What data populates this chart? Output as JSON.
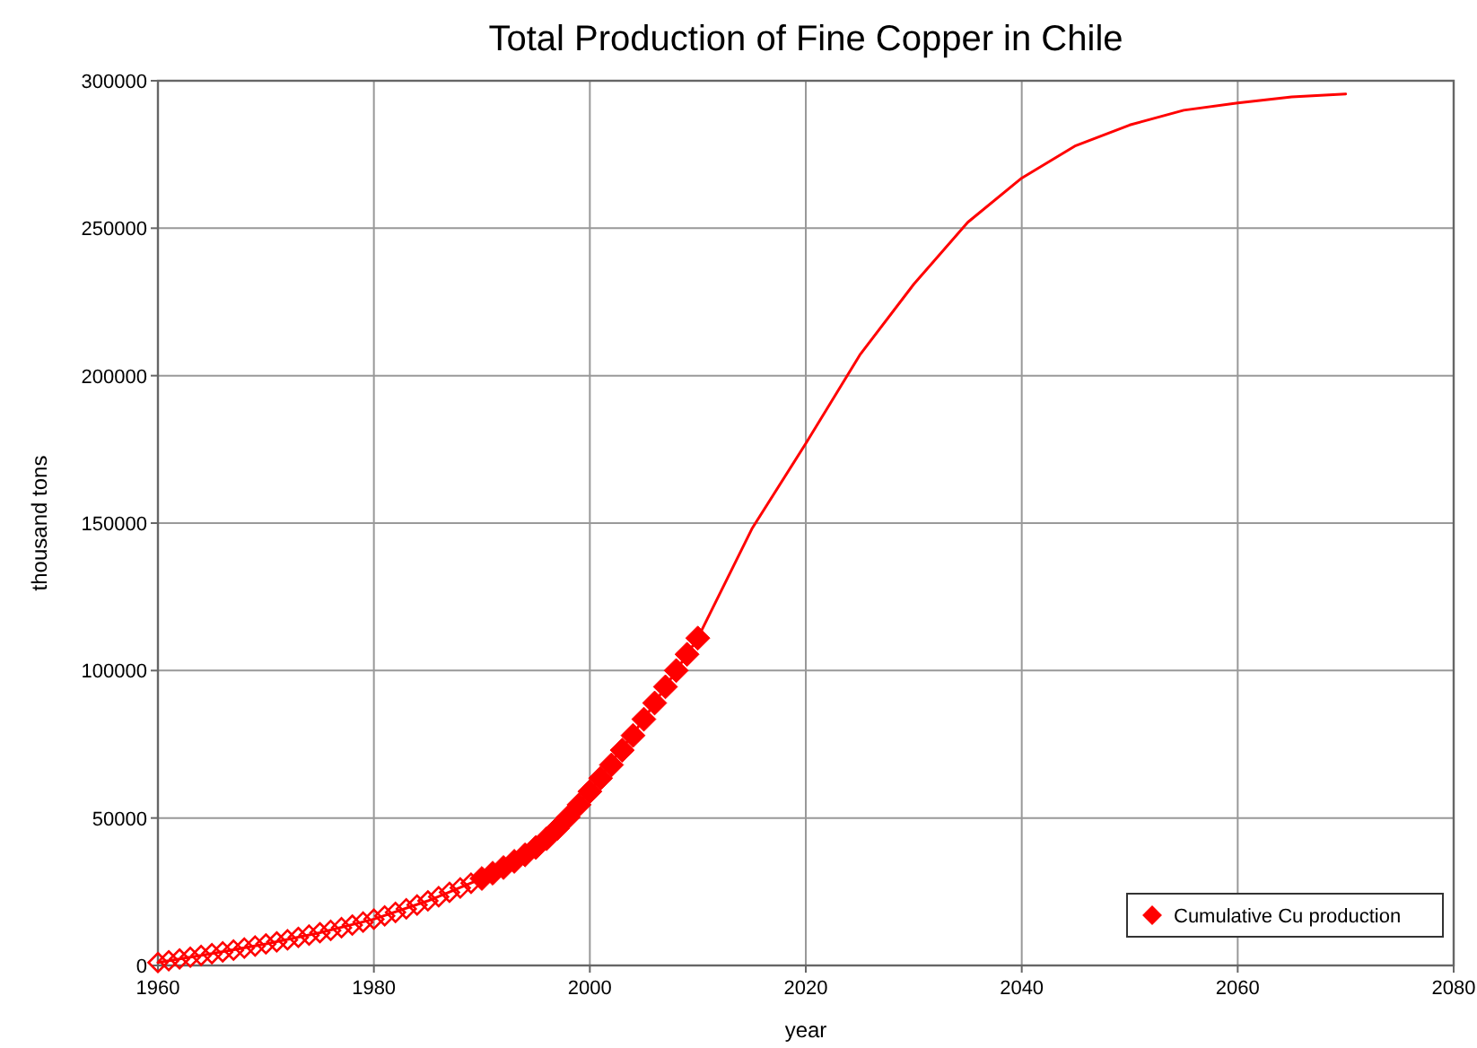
{
  "chart_data": {
    "type": "line",
    "title": "Total Production of Fine Copper in Chile",
    "xlabel": "year",
    "ylabel": "thousand tons",
    "xlim": [
      1960,
      2080
    ],
    "xticks": [
      1960,
      1980,
      2000,
      2020,
      2040,
      2060,
      2080
    ],
    "ylim": [
      0,
      300000
    ],
    "yticks": [
      0,
      50000,
      100000,
      150000,
      200000,
      250000,
      300000
    ],
    "grid": true,
    "legend": "bottom right",
    "series": [
      {
        "color": "#ff0000",
        "marker": "none",
        "line_style": "solid",
        "x": [
          1960,
          1965,
          1970,
          1975,
          1980,
          1985,
          1990,
          1995,
          2000,
          2005,
          2010,
          2015,
          2020,
          2025,
          2030,
          2035,
          2040,
          2045,
          2050,
          2055,
          2060,
          2065,
          2070
        ],
        "values": [
          1000,
          4000,
          7300,
          11100,
          15700,
          21900,
          29500,
          40000,
          59000,
          83500,
          111000,
          148000,
          177000,
          207000,
          231000,
          252000,
          267000,
          278000,
          285000,
          290000,
          292500,
          294500,
          295500
        ]
      },
      {
        "type": "scatter",
        "color": "#ff0000",
        "marker": "diamond",
        "x": [
          1960,
          1961,
          1962,
          1963,
          1964,
          1965,
          1966,
          1967,
          1968,
          1969,
          1970,
          1971,
          1972,
          1973,
          1974,
          1975,
          1976,
          1977,
          1978,
          1979,
          1980,
          1981,
          1982,
          1983,
          1984,
          1985,
          1986,
          1987,
          1988,
          1989
        ],
        "values": [
          1000,
          1600,
          2200,
          2800,
          3400,
          4000,
          4600,
          5200,
          5900,
          6600,
          7300,
          8000,
          8700,
          9500,
          10300,
          11100,
          11900,
          12800,
          13700,
          14700,
          15700,
          16800,
          18000,
          19200,
          20500,
          21900,
          23300,
          24800,
          26300,
          27900
        ]
      },
      {
        "type": "scatter",
        "name": "Cumulative Cu production",
        "color": "#ff0000",
        "marker": "diamond",
        "x": [
          1990,
          1991,
          1992,
          1993,
          1994,
          1995,
          1996,
          1997,
          1998,
          1999,
          2000,
          2001,
          2002,
          2003,
          2004,
          2005,
          2006,
          2007,
          2008,
          2009,
          2010
        ],
        "values": [
          29500,
          31300,
          33200,
          35300,
          37500,
          40000,
          43000,
          46500,
          50300,
          54500,
          59000,
          63500,
          68000,
          73000,
          78000,
          83500,
          89000,
          94500,
          100000,
          105500,
          111000
        ]
      }
    ]
  }
}
